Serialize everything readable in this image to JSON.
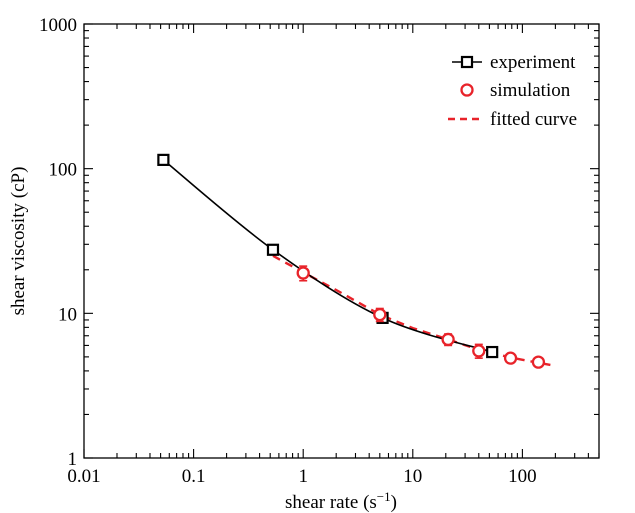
{
  "chart_data": {
    "type": "line",
    "title": "",
    "xlabel": "shear rate (s",
    "xlabel_sup": "−1",
    "xlabel_close": ")",
    "ylabel": "shear viscosity (cP)",
    "xscale": "log",
    "yscale": "log",
    "xlim": [
      0.01,
      500
    ],
    "ylim": [
      1,
      1000
    ],
    "x_ticks": [
      0.01,
      0.1,
      1,
      10,
      100
    ],
    "x_tick_labels": [
      "0.01",
      "0.1",
      "1",
      "10",
      "100"
    ],
    "y_ticks": [
      1,
      10,
      100,
      1000
    ],
    "y_tick_labels": [
      "1",
      "10",
      "100",
      "1000"
    ],
    "grid": false,
    "legend_position": "top-right",
    "series": [
      {
        "name": "experiment",
        "style": "line-square",
        "color": "#000000",
        "x": [
          0.053,
          0.53,
          5.3,
          53
        ],
        "y": [
          115,
          27.5,
          9.3,
          5.4
        ]
      },
      {
        "name": "simulation",
        "style": "circle-errorbar",
        "color": "#e8232a",
        "x": [
          1,
          5,
          21,
          40,
          78,
          140
        ],
        "y": [
          19,
          9.8,
          6.6,
          5.5,
          4.9,
          4.6
        ],
        "err": [
          2.2,
          1.0,
          0.6,
          0.6,
          0.3,
          0.3
        ]
      },
      {
        "name": "fitted curve",
        "style": "dashed",
        "color": "#e8232a",
        "x": [
          0.53,
          1,
          2,
          5,
          10,
          21,
          40,
          78,
          140,
          180
        ],
        "y": [
          25,
          19.2,
          14.5,
          9.8,
          7.9,
          6.6,
          5.6,
          4.95,
          4.55,
          4.4
        ]
      }
    ]
  }
}
